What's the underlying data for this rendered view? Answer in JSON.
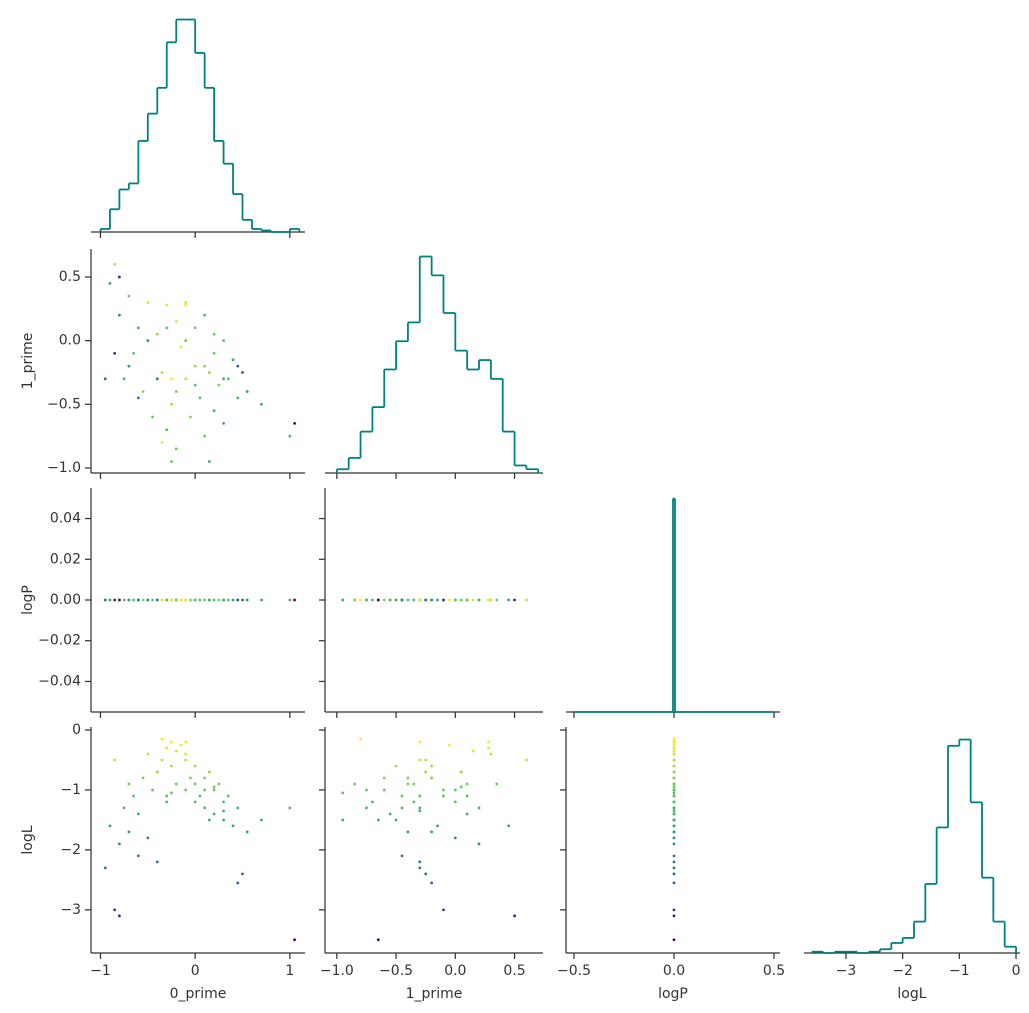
{
  "chart_data": {
    "type": "corner",
    "hist_color": "#008080",
    "spine_color": "#333333",
    "colormap": [
      "#440154",
      "#3b528b",
      "#21918c",
      "#5ec962",
      "#fde725"
    ],
    "color_by": "logL",
    "clim": [
      -3.5,
      -0.2
    ],
    "variables": [
      {
        "name": "0_prime",
        "xlim": [
          -1.1,
          1.16
        ],
        "ylim": [
          -1.1,
          1.16
        ],
        "xticks": [
          {
            "value": -1,
            "label": "−1"
          },
          0,
          1
        ],
        "yticks": []
      },
      {
        "name": "1_prime",
        "xlim": [
          -1.1,
          0.74
        ],
        "ylim": [
          -1.04,
          0.72
        ],
        "xticks": [
          {
            "value": -1.0,
            "label": "−1.0"
          },
          {
            "value": -0.5,
            "label": "−0.5"
          },
          {
            "value": 0.0,
            "label": "0.0"
          },
          0.5
        ],
        "yticks": [
          {
            "value": -1.0,
            "label": "−1.0"
          },
          {
            "value": -0.5,
            "label": "−0.5"
          },
          {
            "value": 0.0,
            "label": "0.0"
          },
          0.5
        ]
      },
      {
        "name": "logP",
        "xlim": [
          -0.54,
          0.53
        ],
        "ylim": [
          -0.055,
          0.055
        ],
        "xticks": [
          {
            "value": -0.5,
            "label": "−0.5"
          },
          {
            "value": 0.0,
            "label": "0.0"
          },
          0.5
        ],
        "yticks": [
          {
            "value": -0.04,
            "label": "−0.04"
          },
          {
            "value": -0.02,
            "label": "−0.02"
          },
          {
            "value": 0.0,
            "label": "0.00"
          },
          {
            "value": 0.02,
            "label": "0.02"
          },
          0.04
        ]
      },
      {
        "name": "logL",
        "xlim": [
          -3.74,
          0.07
        ],
        "ylim": [
          -3.72,
          0.05
        ],
        "xticks": [
          {
            "value": -3,
            "label": "−3"
          },
          {
            "value": -2,
            "label": "−2"
          },
          {
            "value": -1,
            "label": "−1"
          },
          0
        ],
        "yticks": [
          {
            "value": -3,
            "label": "−3"
          },
          {
            "value": -2,
            "label": "−2"
          },
          {
            "value": -1,
            "label": "−1"
          },
          0
        ]
      }
    ],
    "histograms": [
      {
        "bins": [
          -1.0,
          -0.9,
          -0.8,
          -0.7,
          -0.6,
          -0.5,
          -0.4,
          -0.3,
          -0.2,
          -0.1,
          0.0,
          0.1,
          0.2,
          0.3,
          0.4,
          0.5,
          0.6,
          0.7,
          0.8,
          0.9,
          1.0,
          1.1
        ],
        "counts": [
          2,
          15,
          28,
          32,
          60,
          78,
          95,
          125,
          140,
          140,
          118,
          95,
          60,
          45,
          25,
          8,
          2,
          1,
          0,
          0,
          2
        ],
        "ylim": [
          0,
          141
        ]
      },
      {
        "bins": [
          -1.0,
          -0.9,
          -0.8,
          -0.7,
          -0.6,
          -0.5,
          -0.4,
          -0.3,
          -0.2,
          -0.1,
          0.0,
          0.1,
          0.2,
          0.3,
          0.4,
          0.5,
          0.6,
          0.7
        ],
        "counts": [
          2,
          8,
          22,
          35,
          55,
          70,
          80,
          115,
          105,
          85,
          65,
          55,
          60,
          50,
          22,
          4,
          2
        ],
        "ylim": [
          0,
          119
        ]
      },
      {
        "bins": [
          -0.5,
          -0.005,
          0.005,
          0.5
        ],
        "counts": [
          0,
          1000,
          0
        ],
        "ylim": [
          0,
          1050
        ]
      },
      {
        "bins": [
          -3.6,
          -3.4,
          -3.2,
          -3.0,
          -2.8,
          -2.6,
          -2.4,
          -2.2,
          -2.0,
          -1.8,
          -1.6,
          -1.4,
          -1.2,
          -1.0,
          -0.8,
          -0.6,
          -0.4,
          -0.2,
          0.0
        ],
        "counts": [
          1,
          0,
          1,
          1,
          0,
          1,
          3,
          8,
          12,
          25,
          55,
          100,
          165,
          170,
          120,
          60,
          25,
          5
        ],
        "ylim": [
          0,
          180
        ]
      }
    ],
    "samples": [
      [
        -0.9,
        -0.85,
        -0.8,
        -0.75,
        -0.7,
        -0.65,
        -0.6,
        -0.55,
        -0.5,
        -0.45,
        -0.4,
        -0.35,
        -0.3,
        -0.3,
        -0.25,
        -0.2,
        -0.2,
        -0.15,
        -0.1,
        -0.1,
        -0.05,
        0.0,
        0.0,
        0.05,
        0.1,
        0.1,
        0.15,
        0.2,
        0.2,
        0.25,
        0.3,
        0.3,
        0.35,
        0.4,
        0.45,
        0.5,
        0.55,
        0.7,
        -0.95,
        -0.85,
        -0.8,
        1.05,
        1.0,
        -0.6,
        -0.5,
        -0.4,
        -0.3,
        -0.2,
        -0.1,
        0.0,
        0.1,
        0.2,
        0.3,
        0.45,
        -0.7,
        -0.25,
        0.15,
        -0.35,
        -0.1,
        -0.25
      ],
      [
        0.45,
        0.6,
        0.2,
        -0.3,
        0.35,
        -0.1,
        0.1,
        -0.4,
        0.3,
        -0.6,
        0.05,
        -0.25,
        0.28,
        -0.7,
        -0.5,
        0.15,
        -0.85,
        -0.05,
        -0.3,
        0.3,
        -0.6,
        -0.2,
        0.1,
        -0.45,
        -0.75,
        0.2,
        -0.25,
        -0.1,
        -0.55,
        -0.35,
        0.0,
        -0.65,
        -0.3,
        -0.15,
        -0.45,
        -0.25,
        -0.4,
        -0.5,
        -0.3,
        -0.1,
        0.5,
        -0.65,
        -0.75,
        -0.45,
        0.0,
        -0.3,
        0.1,
        -0.4,
        0.0,
        -0.35,
        -0.2,
        0.05,
        -0.3,
        -0.2,
        -0.2,
        -0.95,
        -0.95,
        -0.8,
        0.28,
        -0.3
      ],
      [
        0,
        0,
        0,
        0,
        0,
        0,
        0,
        0,
        0,
        0,
        0,
        0,
        0,
        0,
        0,
        0,
        0,
        0,
        0,
        0,
        0,
        0,
        0,
        0,
        0,
        0,
        0,
        0,
        0,
        0,
        0,
        0,
        0,
        0,
        0,
        0,
        0,
        0,
        0,
        0,
        0,
        0,
        0,
        0,
        0,
        0,
        0,
        0,
        0,
        0,
        0,
        0,
        0,
        0,
        0,
        0,
        0,
        0,
        0,
        0
      ],
      [
        -1.6,
        -0.5,
        -1.9,
        -1.3,
        -0.9,
        -1.1,
        -1.4,
        -0.8,
        -0.4,
        -1.0,
        -0.7,
        -0.5,
        -0.3,
        -1.2,
        -0.6,
        -0.35,
        -0.9,
        -0.25,
        -0.5,
        -0.4,
        -0.8,
        -0.6,
        -0.9,
        -1.1,
        -1.0,
        -1.3,
        -0.7,
        -1.0,
        -1.4,
        -0.9,
        -1.2,
        -1.5,
        -1.1,
        -1.6,
        -1.3,
        -2.4,
        -1.7,
        -1.5,
        -2.3,
        -3.0,
        -3.1,
        -3.5,
        -1.3,
        -2.1,
        -1.8,
        -2.2,
        -1.1,
        -0.9,
        -1.0,
        -1.2,
        -0.8,
        -0.95,
        -1.35,
        -2.55,
        -1.7,
        -1.05,
        -1.5,
        -0.15,
        -0.2,
        -0.2
      ]
    ]
  }
}
